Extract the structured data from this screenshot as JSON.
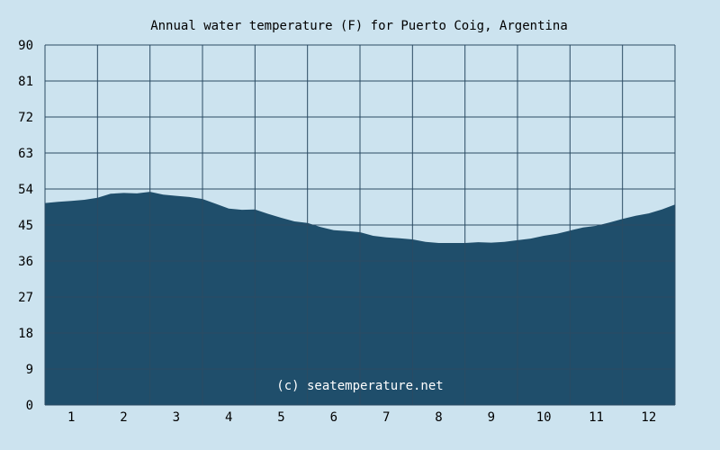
{
  "chart_data": {
    "type": "area",
    "title": "Annual water temperature (F) for Puerto Coig, Argentina",
    "xlabel": "",
    "ylabel": "",
    "x_ticks": [
      "1",
      "2",
      "3",
      "4",
      "5",
      "6",
      "7",
      "8",
      "9",
      "10",
      "11",
      "12"
    ],
    "y_ticks": [
      "0",
      "9",
      "18",
      "27",
      "36",
      "45",
      "54",
      "63",
      "72",
      "81",
      "90"
    ],
    "xlim": [
      0.5,
      12.5
    ],
    "ylim": [
      0,
      90
    ],
    "grid": true,
    "watermark": "(c) seatemperature.net",
    "series": [
      {
        "values_x": [
          0.5,
          0.75,
          1.0,
          1.25,
          1.5,
          1.75,
          2.0,
          2.25,
          2.5,
          2.75,
          3.0,
          3.25,
          3.5,
          3.75,
          4.0,
          4.25,
          4.5,
          4.75,
          5.0,
          5.25,
          5.5,
          5.75,
          6.0,
          6.25,
          6.5,
          6.75,
          7.0,
          7.25,
          7.5,
          7.75,
          8.0,
          8.25,
          8.5,
          8.75,
          9.0,
          9.25,
          9.5,
          9.75,
          10.0,
          10.25,
          10.5,
          10.75,
          11.0,
          11.25,
          11.5,
          11.75,
          12.0,
          12.25,
          12.5
        ],
        "values_y": [
          50.5,
          50.8,
          51.0,
          51.3,
          51.8,
          52.8,
          53.0,
          52.9,
          53.3,
          52.6,
          52.3,
          52.0,
          51.5,
          50.3,
          49.1,
          48.8,
          48.9,
          47.8,
          46.8,
          45.9,
          45.5,
          44.5,
          43.7,
          43.5,
          43.2,
          42.3,
          41.9,
          41.7,
          41.4,
          40.8,
          40.5,
          40.5,
          40.5,
          40.7,
          40.6,
          40.8,
          41.2,
          41.6,
          42.3,
          42.8,
          43.6,
          44.4,
          44.8,
          45.6,
          46.5,
          47.3,
          47.9,
          48.9,
          50.1
        ]
      }
    ],
    "colors": {
      "background": "#cce3ef",
      "fill": "#1f4e6b",
      "grid": "#2b4b63"
    }
  }
}
